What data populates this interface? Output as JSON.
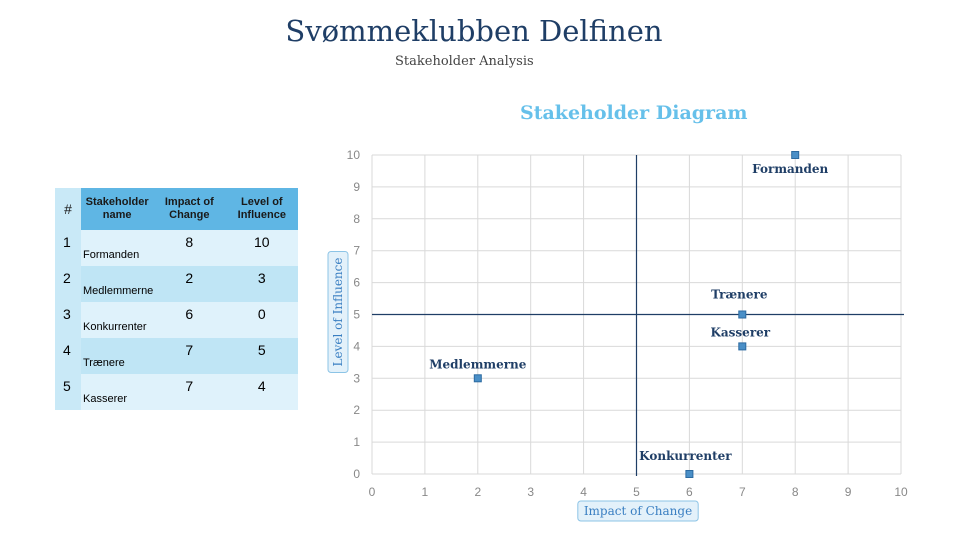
{
  "header": {
    "title": "Svømmeklubben Delfinen",
    "subtitle": "Stakeholder Analysis"
  },
  "table": {
    "columns": [
      "#",
      "Stakeholder name",
      "Impact of Change",
      "Level of Influence"
    ],
    "rows": [
      {
        "num": "1",
        "name": "Formanden",
        "impact": "8",
        "influence": "10"
      },
      {
        "num": "2",
        "name": "Medlemmerne",
        "impact": "2",
        "influence": "3"
      },
      {
        "num": "3",
        "name": "Konkurrenter",
        "impact": "6",
        "influence": "0"
      },
      {
        "num": "4",
        "name": "Trænere",
        "impact": "7",
        "influence": "5"
      },
      {
        "num": "5",
        "name": "Kasserer",
        "impact": "7",
        "influence": "4"
      }
    ]
  },
  "chart_data": {
    "type": "scatter",
    "title": "Stakeholder Diagram",
    "xlabel": "Impact of Change",
    "ylabel": "Level of Influence",
    "xlim": [
      0,
      10
    ],
    "ylim": [
      0,
      10
    ],
    "xticks": [
      "0",
      "1",
      "2",
      "3",
      "4",
      "5",
      "6",
      "7",
      "8",
      "9",
      "10"
    ],
    "yticks": [
      "0",
      "1",
      "2",
      "3",
      "4",
      "5",
      "6",
      "7",
      "8",
      "9",
      "10"
    ],
    "grid": true,
    "quadrant_lines": {
      "x": 5,
      "y": 5
    },
    "points": [
      {
        "label": "Formanden",
        "x": 8,
        "y": 10
      },
      {
        "label": "Medlemmerne",
        "x": 2,
        "y": 3
      },
      {
        "label": "Konkurrenter",
        "x": 6,
        "y": 0
      },
      {
        "label": "Trænere",
        "x": 7,
        "y": 5
      },
      {
        "label": "Kasserer",
        "x": 7,
        "y": 4
      }
    ],
    "colors": {
      "marker": "#4a8fc7",
      "marker_edge": "#2c6aa0",
      "label": "#1f3e66",
      "axis_title": "#3a7fc2",
      "axis_title_bg": "#e3f1fa",
      "axis_title_border": "#8cc4e6",
      "quadrant": "#1f3e66",
      "grid": "#d9d9d9"
    }
  }
}
